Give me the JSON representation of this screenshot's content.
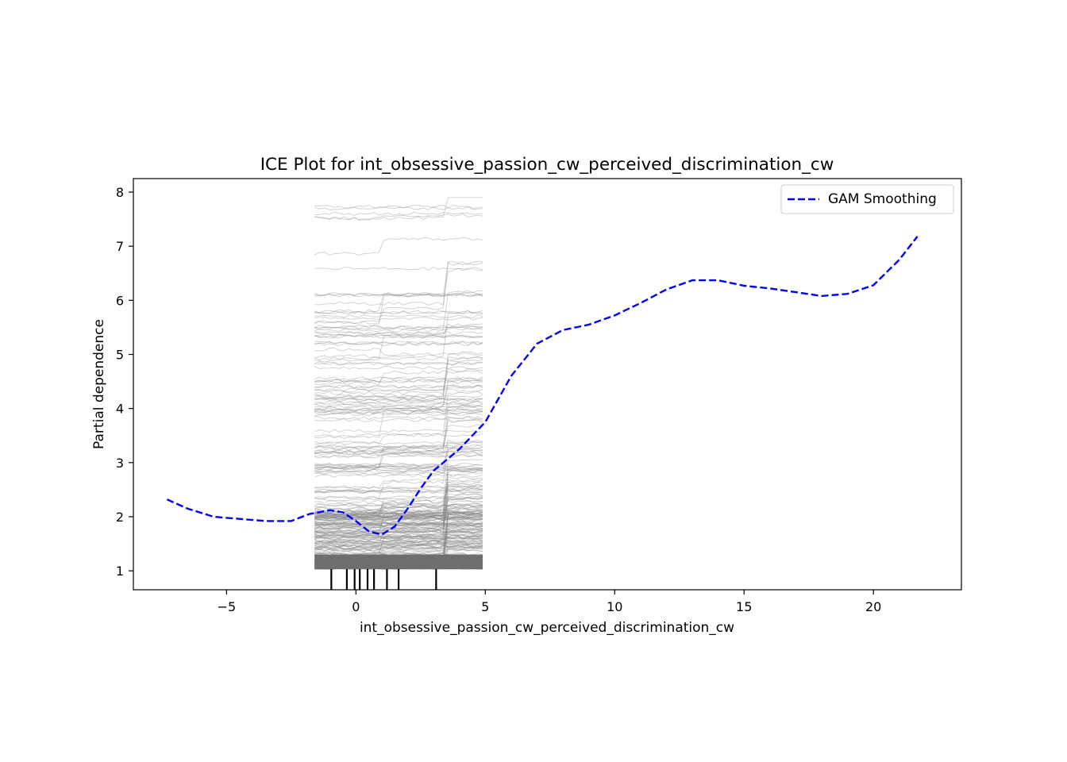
{
  "chart_data": {
    "type": "line",
    "title": "ICE Plot for int_obsessive_passion_cw_perceived_discrimination_cw",
    "xlabel": "int_obsessive_passion_cw_perceived_discrimination_cw",
    "ylabel": "Partial dependence",
    "xlim": [
      -8.6,
      23.4
    ],
    "ylim": [
      0.65,
      8.25
    ],
    "x_ticks": [
      -5,
      0,
      5,
      10,
      15,
      20
    ],
    "y_ticks": [
      1,
      2,
      3,
      4,
      5,
      6,
      7,
      8
    ],
    "x_tick_labels": [
      "−5",
      "0",
      "5",
      "10",
      "15",
      "20"
    ],
    "y_tick_labels": [
      "1",
      "2",
      "3",
      "4",
      "5",
      "6",
      "7",
      "8"
    ],
    "grid": false,
    "legend": {
      "position": "top-right",
      "entries": [
        "GAM Smoothing"
      ]
    },
    "series": [
      {
        "name": "GAM Smoothing",
        "style": "dashed",
        "color": "#0000ff",
        "x": [
          -7.3,
          -6.5,
          -5.5,
          -4.5,
          -3.5,
          -2.5,
          -1.8,
          -1.0,
          -0.5,
          0.0,
          0.5,
          1.0,
          1.5,
          2.0,
          2.5,
          3.0,
          4.0,
          5.0,
          6.0,
          7.0,
          8.0,
          9.0,
          10.0,
          11.0,
          12.0,
          13.0,
          14.0,
          15.0,
          16.0,
          17.0,
          18.0,
          19.0,
          20.0,
          21.0,
          21.7
        ],
        "y": [
          2.32,
          2.15,
          2.0,
          1.96,
          1.92,
          1.92,
          2.05,
          2.12,
          2.08,
          1.92,
          1.73,
          1.67,
          1.82,
          2.15,
          2.52,
          2.85,
          3.25,
          3.75,
          4.6,
          5.2,
          5.45,
          5.55,
          5.72,
          5.95,
          6.2,
          6.37,
          6.37,
          6.27,
          6.22,
          6.15,
          6.08,
          6.12,
          6.28,
          6.75,
          7.18
        ]
      }
    ],
    "ice_curves": {
      "color": "#808080",
      "x_range": [
        -1.6,
        4.9
      ],
      "count": 260,
      "y_min": 1.03,
      "y_max": 7.9
    },
    "rug": {
      "color": "#000000",
      "x": [
        -0.95,
        -0.35,
        -0.05,
        0.15,
        0.45,
        0.7,
        1.2,
        1.65,
        3.1
      ]
    }
  }
}
